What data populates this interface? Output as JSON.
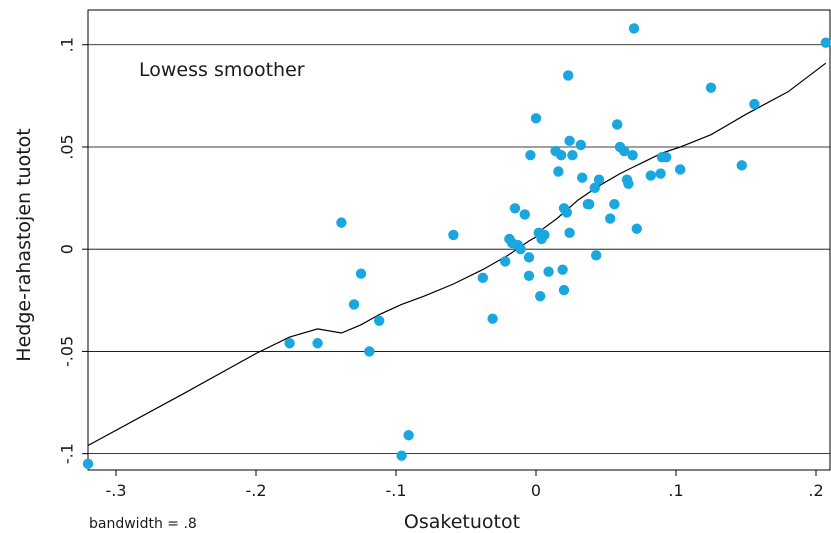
{
  "chart_data": {
    "type": "scatter",
    "title": "",
    "xlabel": "Osaketuotot",
    "ylabel": "Hedge-rahastojen tuotot",
    "xlim": [
      -0.32,
      0.21
    ],
    "ylim": [
      -0.108,
      0.117
    ],
    "x_ticks": [
      -0.3,
      -0.2,
      -0.1,
      0,
      0.1,
      0.2
    ],
    "x_tick_labels": [
      "-.3",
      "-.2",
      "-.1",
      "0",
      ".1",
      ".2"
    ],
    "y_ticks": [
      -0.1,
      -0.05,
      0,
      0.05,
      0.1
    ],
    "y_tick_labels": [
      "-.1",
      "-.05",
      "0",
      ".05",
      ".1"
    ],
    "grid": "horizontal",
    "annotation": "Lowess smoother",
    "note": "bandwidth = .8",
    "colors": {
      "points": "#1aa7e0",
      "line": "#000000",
      "grid": "#000000"
    },
    "points": [
      [
        -0.32,
        -0.105
      ],
      [
        -0.176,
        -0.046
      ],
      [
        -0.156,
        -0.046
      ],
      [
        -0.139,
        0.013
      ],
      [
        -0.13,
        -0.027
      ],
      [
        -0.125,
        -0.012
      ],
      [
        -0.119,
        -0.05
      ],
      [
        -0.112,
        -0.035
      ],
      [
        -0.096,
        -0.101
      ],
      [
        -0.091,
        -0.091
      ],
      [
        -0.059,
        0.007
      ],
      [
        -0.038,
        -0.014
      ],
      [
        -0.031,
        -0.034
      ],
      [
        -0.022,
        -0.006
      ],
      [
        -0.019,
        0.005
      ],
      [
        -0.017,
        0.003
      ],
      [
        -0.015,
        0.02
      ],
      [
        -0.013,
        0.002
      ],
      [
        -0.011,
        0.0
      ],
      [
        -0.008,
        0.017
      ],
      [
        -0.005,
        -0.004
      ],
      [
        -0.005,
        -0.013
      ],
      [
        -0.004,
        0.046
      ],
      [
        0.0,
        0.064
      ],
      [
        0.002,
        0.008
      ],
      [
        0.003,
        -0.023
      ],
      [
        0.004,
        0.005
      ],
      [
        0.006,
        0.007
      ],
      [
        0.009,
        -0.011
      ],
      [
        0.014,
        0.048
      ],
      [
        0.016,
        0.038
      ],
      [
        0.018,
        0.046
      ],
      [
        0.019,
        -0.01
      ],
      [
        0.02,
        -0.02
      ],
      [
        0.02,
        0.02
      ],
      [
        0.022,
        0.018
      ],
      [
        0.023,
        0.085
      ],
      [
        0.024,
        0.053
      ],
      [
        0.024,
        0.008
      ],
      [
        0.026,
        0.046
      ],
      [
        0.032,
        0.051
      ],
      [
        0.033,
        0.035
      ],
      [
        0.037,
        0.022
      ],
      [
        0.038,
        0.022
      ],
      [
        0.042,
        0.03
      ],
      [
        0.043,
        -0.003
      ],
      [
        0.045,
        0.034
      ],
      [
        0.053,
        0.015
      ],
      [
        0.056,
        0.022
      ],
      [
        0.058,
        0.061
      ],
      [
        0.06,
        0.05
      ],
      [
        0.063,
        0.048
      ],
      [
        0.065,
        0.034
      ],
      [
        0.066,
        0.032
      ],
      [
        0.069,
        0.046
      ],
      [
        0.07,
        0.108
      ],
      [
        0.072,
        0.01
      ],
      [
        0.082,
        0.036
      ],
      [
        0.089,
        0.037
      ],
      [
        0.09,
        0.045
      ],
      [
        0.093,
        0.045
      ],
      [
        0.103,
        0.039
      ],
      [
        0.125,
        0.079
      ],
      [
        0.147,
        0.041
      ],
      [
        0.156,
        0.071
      ],
      [
        0.207,
        0.101
      ]
    ],
    "lowess": [
      [
        -0.32,
        -0.096
      ],
      [
        -0.25,
        -0.07
      ],
      [
        -0.2,
        -0.051
      ],
      [
        -0.176,
        -0.043
      ],
      [
        -0.156,
        -0.039
      ],
      [
        -0.139,
        -0.041
      ],
      [
        -0.125,
        -0.037
      ],
      [
        -0.112,
        -0.032
      ],
      [
        -0.096,
        -0.027
      ],
      [
        -0.08,
        -0.023
      ],
      [
        -0.059,
        -0.017
      ],
      [
        -0.038,
        -0.01
      ],
      [
        -0.02,
        -0.003
      ],
      [
        -0.005,
        0.004
      ],
      [
        0.0,
        0.006
      ],
      [
        0.005,
        0.01
      ],
      [
        0.015,
        0.015
      ],
      [
        0.03,
        0.024
      ],
      [
        0.045,
        0.031
      ],
      [
        0.06,
        0.037
      ],
      [
        0.075,
        0.042
      ],
      [
        0.09,
        0.047
      ],
      [
        0.103,
        0.05
      ],
      [
        0.125,
        0.056
      ],
      [
        0.15,
        0.066
      ],
      [
        0.18,
        0.077
      ],
      [
        0.207,
        0.091
      ]
    ]
  }
}
